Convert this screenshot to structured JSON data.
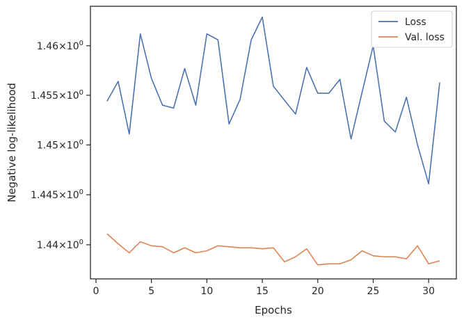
{
  "chart_data": {
    "type": "line",
    "title": "",
    "xlabel": "Epochs",
    "ylabel": "Negative log-likelihood",
    "xlim": [
      -0.5,
      32.5
    ],
    "ylim": [
      1.4366,
      1.464
    ],
    "yscale": "log",
    "grid": false,
    "legend_position": "top-right",
    "x_ticks": [
      {
        "value": 0,
        "label": "0"
      },
      {
        "value": 5,
        "label": "5"
      },
      {
        "value": 10,
        "label": "10"
      },
      {
        "value": 15,
        "label": "15"
      },
      {
        "value": 20,
        "label": "20"
      },
      {
        "value": 25,
        "label": "25"
      },
      {
        "value": 30,
        "label": "30"
      }
    ],
    "y_ticks": [
      {
        "value": 1.44,
        "mantissa": "1.44",
        "base": "10",
        "exp": "0"
      },
      {
        "value": 1.445,
        "mantissa": "1.445",
        "base": "10",
        "exp": "0"
      },
      {
        "value": 1.45,
        "mantissa": "1.45",
        "base": "10",
        "exp": "0"
      },
      {
        "value": 1.455,
        "mantissa": "1.455",
        "base": "10",
        "exp": "0"
      },
      {
        "value": 1.46,
        "mantissa": "1.46",
        "base": "10",
        "exp": "0"
      }
    ],
    "x": [
      1,
      2,
      3,
      4,
      5,
      6,
      7,
      8,
      9,
      10,
      11,
      12,
      13,
      14,
      15,
      16,
      17,
      18,
      19,
      20,
      21,
      22,
      23,
      24,
      25,
      26,
      27,
      28,
      29,
      30,
      31
    ],
    "series": [
      {
        "name": "Loss",
        "color": "#4c72b0",
        "values": [
          1.4544,
          1.4564,
          1.4511,
          1.4612,
          1.4567,
          1.454,
          1.4537,
          1.4577,
          1.454,
          1.4612,
          1.4606,
          1.4521,
          1.4546,
          1.4606,
          1.4629,
          1.4559,
          1.4545,
          1.4531,
          1.4578,
          1.4552,
          1.4552,
          1.4566,
          1.4506,
          1.4553,
          1.46,
          1.4524,
          1.4513,
          1.4548,
          1.45,
          1.4461,
          1.4563
        ]
      },
      {
        "name": "Val. loss",
        "color": "#dd8452",
        "values": [
          1.4411,
          1.4401,
          1.4392,
          1.4403,
          1.4399,
          1.4398,
          1.4392,
          1.4397,
          1.4392,
          1.4394,
          1.4399,
          1.4398,
          1.4397,
          1.4397,
          1.4396,
          1.4397,
          1.4383,
          1.4388,
          1.4396,
          1.438,
          1.4381,
          1.4381,
          1.4385,
          1.4394,
          1.4389,
          1.4388,
          1.4388,
          1.4386,
          1.4399,
          1.4381,
          1.4384
        ]
      }
    ]
  }
}
